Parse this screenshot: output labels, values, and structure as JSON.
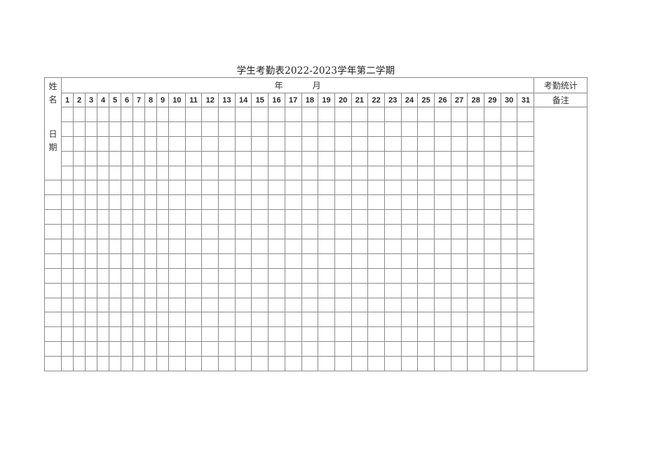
{
  "title": "学生考勤表2022-2023学年第二学期",
  "table": {
    "corner": {
      "name_label": "姓名",
      "date_label": "日期"
    },
    "header": {
      "year_label": "年",
      "month_label": "月",
      "stats_label": "考勤统计",
      "remarks_label": "备注"
    },
    "days": [
      "1",
      "2",
      "3",
      "4",
      "5",
      "6",
      "7",
      "8",
      "9",
      "10",
      "11",
      "12",
      "13",
      "14",
      "15",
      "16",
      "17",
      "18",
      "19",
      "20",
      "21",
      "22",
      "23",
      "24",
      "25",
      "26",
      "27",
      "28",
      "29",
      "30",
      "31"
    ],
    "narrow_day_count": 9,
    "body_row_count": 18,
    "corner_body_row_span": 5,
    "cells": ""
  },
  "colors": {
    "background": "#ffffff",
    "border": "#8b8b8b",
    "outer_border": "#777777",
    "text": "#333333",
    "number_text": "#262626",
    "title_text": "#1f1f1f"
  }
}
